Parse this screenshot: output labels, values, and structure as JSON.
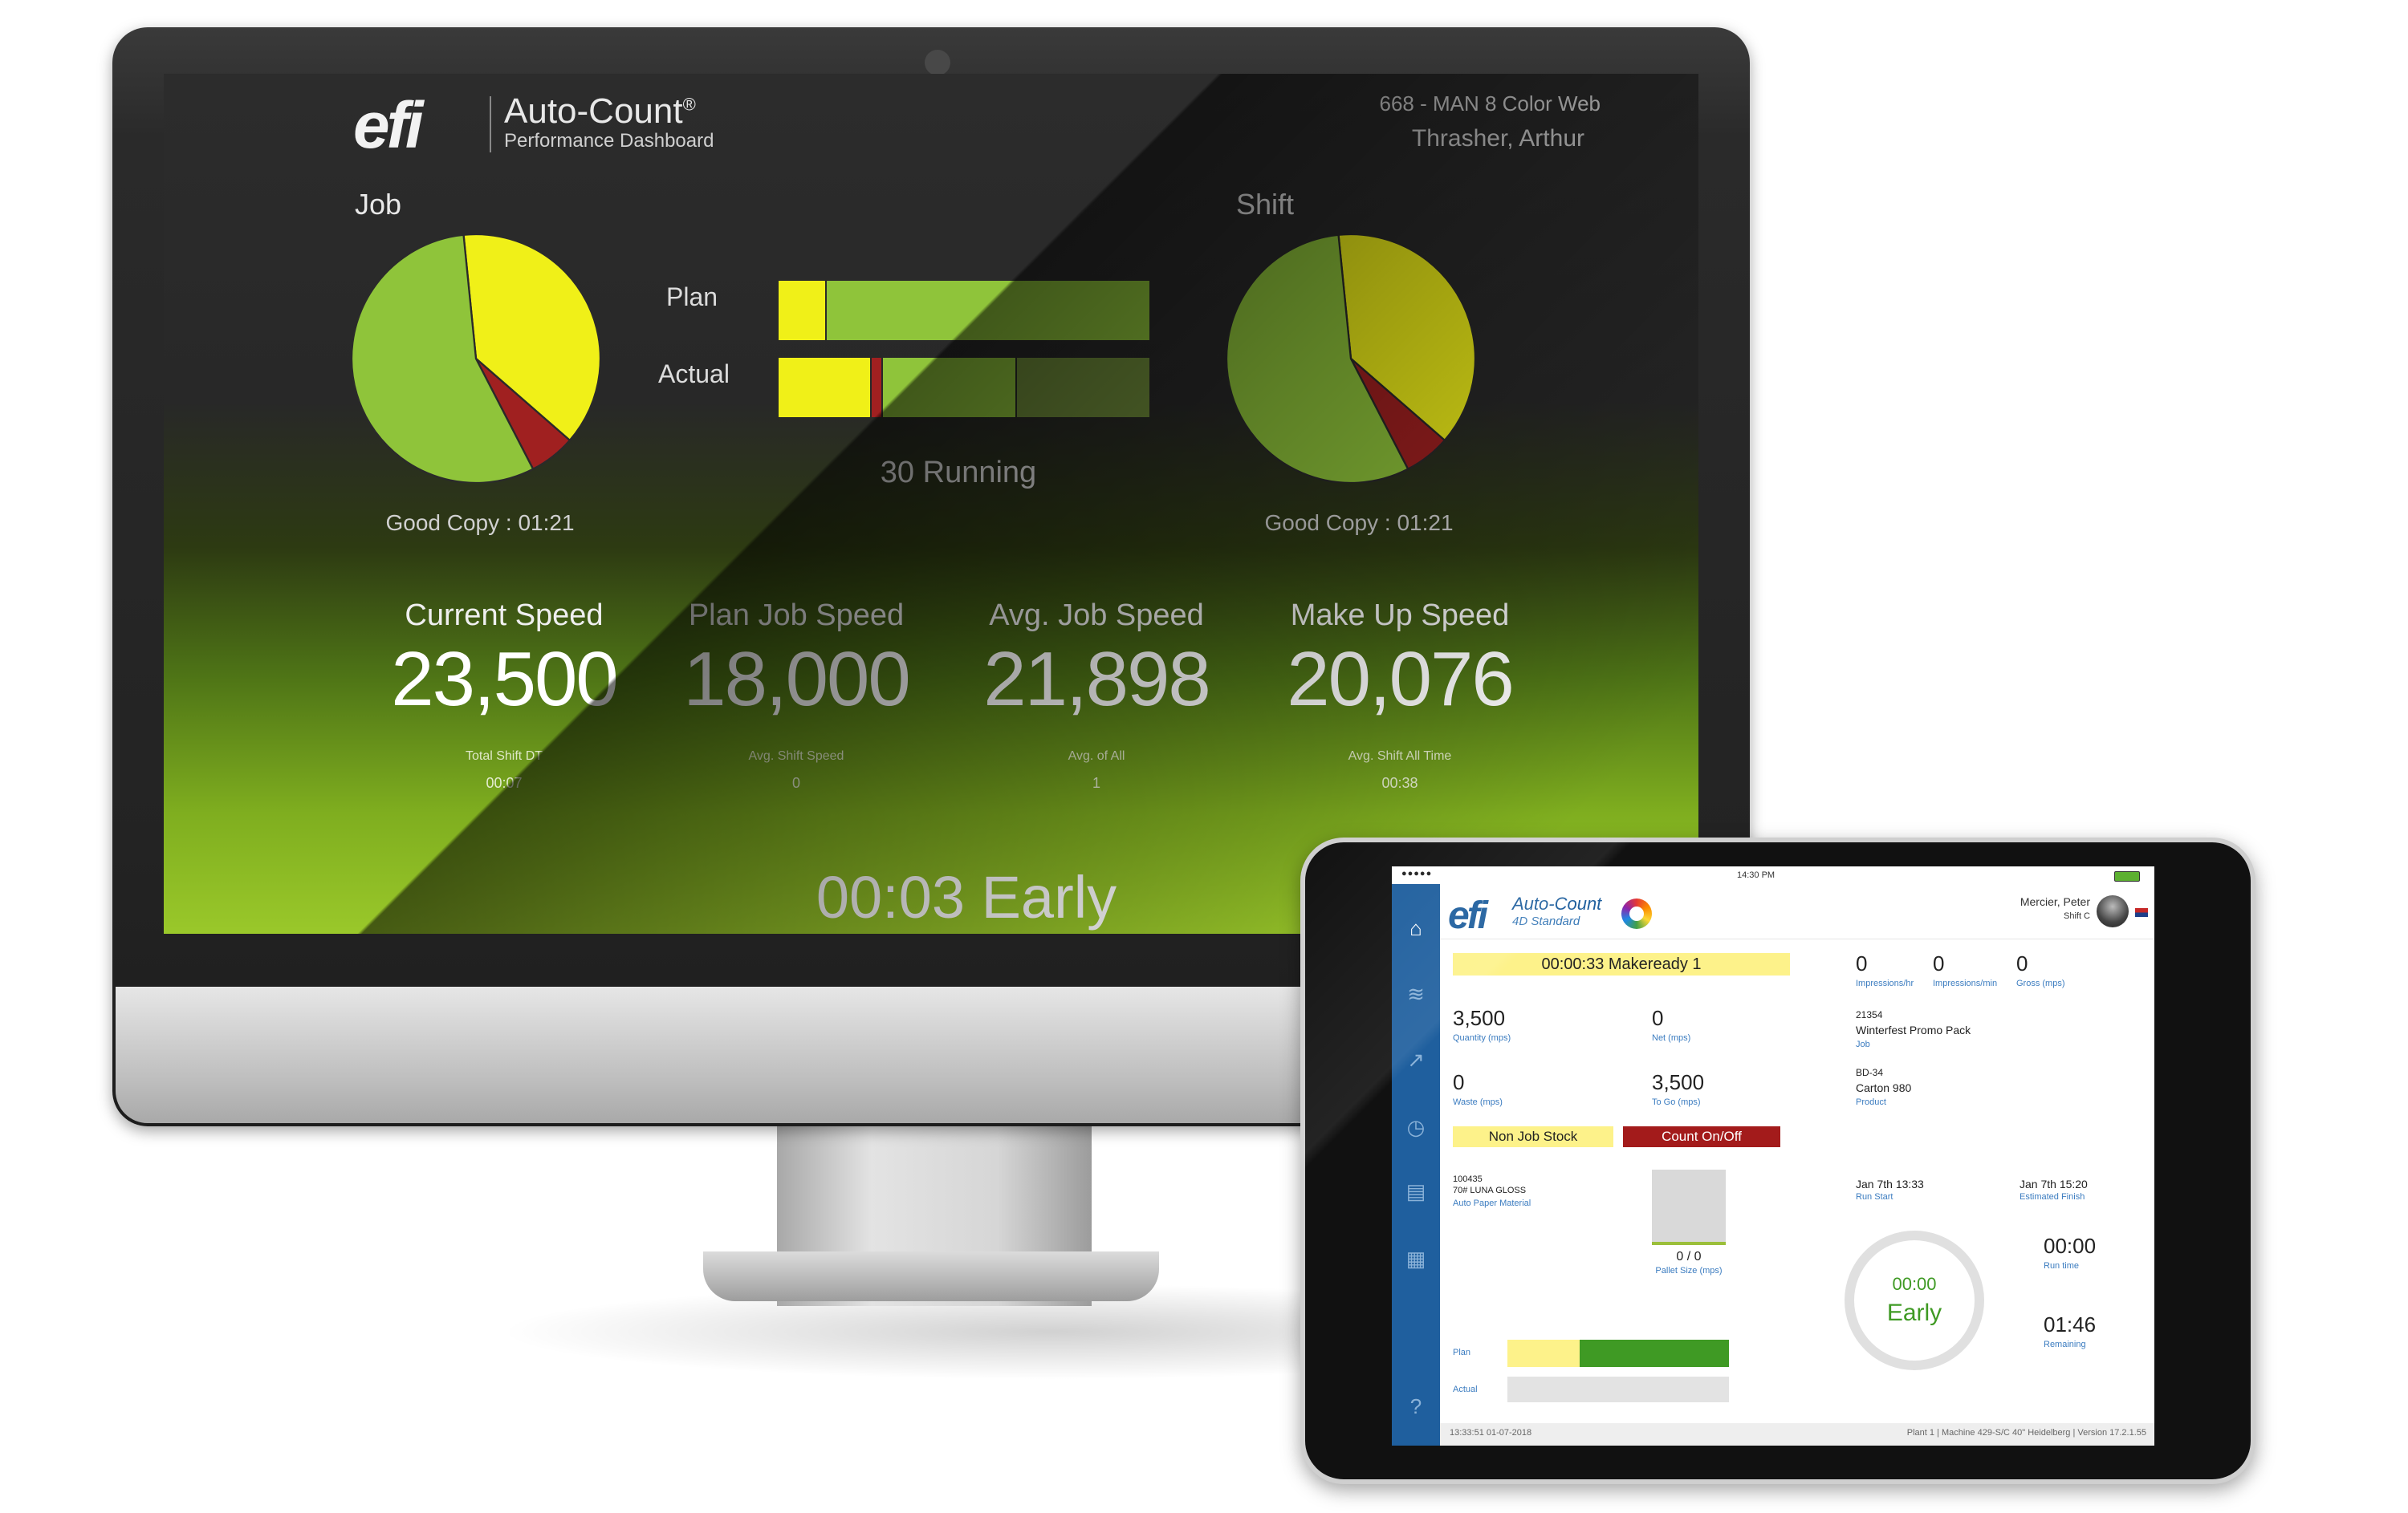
{
  "monitor": {
    "brand": "efi",
    "app_title": "Auto-Count",
    "app_title_mark": "®",
    "app_subtitle": "Performance Dashboard",
    "machine": "668 - MAN 8 Color Web",
    "operator": "Thrasher, Arthur",
    "job_label": "Job",
    "shift_label": "Shift",
    "plan_label": "Plan",
    "actual_label": "Actual",
    "running_status": "30 Running",
    "good_copy_job": "Good Copy : 01:21",
    "good_copy_shift": "Good Copy : 01:21",
    "speeds": [
      {
        "label": "Current Speed",
        "value": "23,500",
        "sub_label": "Total Shift DT",
        "sub_value": "00:07"
      },
      {
        "label": "Plan Job Speed",
        "value": "18,000",
        "sub_label": "Avg. Shift Speed",
        "sub_value": "0"
      },
      {
        "label": "Avg. Job Speed",
        "value": "21,898",
        "sub_label": "Avg. of All",
        "sub_value": "1"
      },
      {
        "label": "Make Up Speed",
        "value": "20,076",
        "sub_label": "Avg. Shift All Time",
        "sub_value": "00:38"
      }
    ],
    "status": "00:03 Early",
    "colors": {
      "good": "#8fc43a",
      "warn": "#f0f018",
      "bad": "#a02020",
      "dark_green": "#6f8c3a"
    },
    "job_pie": {
      "segments": [
        {
          "name": "good",
          "fraction": 0.56
        },
        {
          "name": "bad",
          "fraction": 0.06
        },
        {
          "name": "warn",
          "fraction": 0.38
        }
      ]
    },
    "shift_pie": {
      "segments": [
        {
          "name": "good",
          "fraction": 0.56
        },
        {
          "name": "bad",
          "fraction": 0.06
        },
        {
          "name": "warn",
          "fraction": 0.38
        }
      ]
    },
    "plan_bar": [
      {
        "name": "warn",
        "fraction": 0.13
      },
      {
        "name": "good",
        "fraction": 0.87
      }
    ],
    "actual_bar": [
      {
        "name": "warn",
        "fraction": 0.25
      },
      {
        "name": "bad",
        "fraction": 0.03
      },
      {
        "name": "good",
        "fraction": 0.36
      },
      {
        "name": "dark",
        "fraction": 0.36
      }
    ]
  },
  "tablet": {
    "status_time": "14:30 PM",
    "brand": "efi",
    "app_title": "Auto-Count",
    "app_subtitle": "4D Standard",
    "user": "Mercier, Peter",
    "shift": "Shift C",
    "makeready": "00:00:33 Makeready 1",
    "counters": [
      {
        "value": "0",
        "caption": "Impressions/hr"
      },
      {
        "value": "0",
        "caption": "Impressions/min"
      },
      {
        "value": "0",
        "caption": "Gross (mps)"
      }
    ],
    "quantity": {
      "value": "3,500",
      "caption": "Quantity (mps)"
    },
    "net": {
      "value": "0",
      "caption": "Net (mps)"
    },
    "waste": {
      "value": "0",
      "caption": "Waste (mps)"
    },
    "to_go": {
      "value": "3,500",
      "caption": "To Go (mps)"
    },
    "job": {
      "number": "21354",
      "name": "Winterfest Promo Pack",
      "caption": "Job"
    },
    "product": {
      "number": "BD-34",
      "name": "Carton 980",
      "caption": "Product"
    },
    "non_job_stock": "Non Job Stock",
    "count_on_off": "Count On/Off",
    "paper": {
      "number": "100435",
      "name": "70# LUNA GLOSS",
      "caption": "Auto Paper Material"
    },
    "pallet": {
      "value": "0 / 0",
      "caption": "Pallet Size (mps)"
    },
    "plan_label": "Plan",
    "actual_label": "Actual",
    "run_start": {
      "value": "Jan 7th 13:33",
      "caption": "Run Start"
    },
    "estimated_finish": {
      "value": "Jan 7th 15:20",
      "caption": "Estimated Finish"
    },
    "circle_time": "00:00",
    "circle_status": "Early",
    "run_time": {
      "value": "00:00",
      "caption": "Run time"
    },
    "remaining": {
      "value": "01:46",
      "caption": "Remaining"
    },
    "footer_left": "13:33:51 01-07-2018",
    "footer_right": "Plant 1 | Machine 429-S/C 40\" Heidelberg | Version 17.2.1.55",
    "nav_icons": [
      "home-icon",
      "layers-icon",
      "chart-icon",
      "clock-icon",
      "report-icon",
      "calendar-icon",
      "help-icon"
    ]
  }
}
